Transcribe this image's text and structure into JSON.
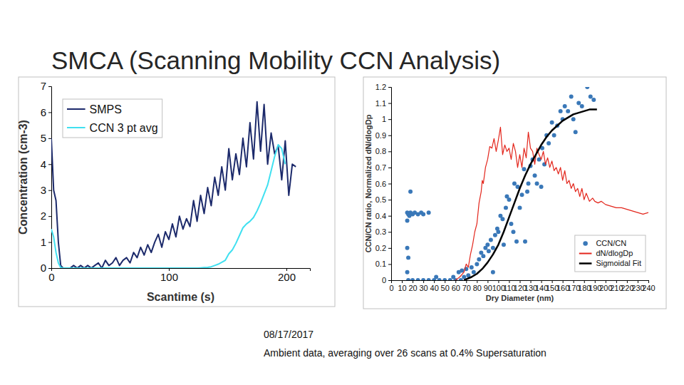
{
  "slide": {
    "title": "SMCA (Scanning Mobility CCN Analysis)",
    "notes": [
      "08/17/2017",
      "Ambient data, averaging over 26 scans at 0.4% Supersaturation"
    ]
  },
  "chart_data": [
    {
      "type": "line",
      "xlabel": "Scantime (s)",
      "ylabel": "Concentration (cm-3)",
      "x": [
        0,
        2,
        4,
        6,
        8,
        10,
        13,
        16,
        19,
        22,
        25,
        28,
        31,
        34,
        37,
        40,
        43,
        46,
        49,
        52,
        55,
        58,
        61,
        64,
        67,
        70,
        73,
        76,
        79,
        82,
        85,
        88,
        91,
        94,
        97,
        100,
        103,
        106,
        109,
        112,
        115,
        118,
        121,
        124,
        127,
        130,
        133,
        136,
        139,
        142,
        145,
        148,
        151,
        154,
        157,
        160,
        163,
        166,
        169,
        172,
        175,
        178,
        181,
        184,
        187,
        190,
        193,
        196,
        199,
        202,
        205,
        208
      ],
      "series": [
        {
          "name": "SMPS",
          "color": "#1c2a6b",
          "line_style": "solid",
          "values": [
            5.0,
            3.0,
            2.6,
            1.0,
            0.1,
            0,
            0,
            0,
            0.1,
            0,
            0.1,
            0,
            0.1,
            0,
            0.1,
            0.2,
            0,
            0.3,
            0.1,
            0.2,
            0.4,
            0.1,
            0.3,
            0.4,
            0.2,
            0.6,
            0.4,
            0.8,
            0.5,
            0.9,
            0.6,
            1.0,
            1.3,
            0.8,
            1.4,
            1.1,
            1.7,
            1.2,
            2.0,
            1.5,
            1.9,
            1.6,
            2.6,
            1.8,
            2.8,
            2.1,
            3.1,
            2.4,
            3.5,
            2.8,
            3.9,
            3.0,
            4.6,
            3.4,
            4.4,
            3.6,
            5.0,
            3.9,
            5.6,
            4.2,
            6.4,
            4.5,
            6.3,
            4.0,
            5.2,
            4.4,
            4.7,
            3.4,
            4.9,
            2.8,
            4.0,
            3.9
          ]
        },
        {
          "name": "CCN 3 pt avg",
          "color": "#40e0f0",
          "line_style": "solid",
          "values": [
            1.5,
            1.2,
            0.6,
            0.2,
            0.02,
            0,
            0,
            0,
            0,
            0,
            0,
            0,
            0,
            0,
            0,
            0,
            0,
            0,
            0,
            0,
            0,
            0,
            0,
            0,
            0,
            0,
            0,
            0,
            0,
            0,
            0,
            0,
            0,
            0,
            0,
            0,
            0,
            0,
            0,
            0,
            0,
            0,
            0,
            0,
            0.01,
            0.02,
            0.03,
            0.05,
            0.1,
            0.15,
            0.22,
            0.3,
            0.55,
            0.7,
            0.95,
            1.25,
            1.55,
            1.7,
            1.8,
            1.95,
            2.2,
            2.5,
            2.85,
            3.2,
            3.75,
            4.3,
            4.75,
            4.6,
            4.0,
            null,
            null,
            null
          ]
        }
      ],
      "xlim": [
        0,
        220
      ],
      "xticks": [
        0,
        100,
        200
      ],
      "ylim": [
        0,
        7
      ],
      "yticks": [
        0,
        1,
        2,
        3,
        4,
        5,
        6,
        7
      ],
      "grid": false,
      "legend": "upper left"
    },
    {
      "type": "scatter",
      "xlabel": "Dry Diameter (nm)",
      "ylabel": "CCN/CN ratio, Normalized dN/dlogDp",
      "series": [
        {
          "name": "CCN/CN",
          "color": "#3a78b8",
          "marker": "circle",
          "x": [
            15,
            16,
            17,
            18,
            20,
            22,
            25,
            28,
            30,
            35,
            18,
            15,
            15,
            16,
            15,
            16,
            20,
            25,
            30,
            35,
            40,
            45,
            50,
            55,
            60,
            65,
            42,
            58,
            63,
            66,
            68,
            70,
            72,
            75,
            77,
            80,
            82,
            84,
            86,
            88,
            90,
            91,
            93,
            95,
            95,
            97,
            99,
            100,
            102,
            104,
            105,
            107,
            108,
            110,
            112,
            114,
            115,
            117,
            118,
            120,
            122,
            124,
            125,
            127,
            128,
            130,
            132,
            134,
            136,
            138,
            140,
            141,
            143,
            145,
            147,
            150,
            152,
            155,
            158,
            160,
            162,
            165,
            168,
            170,
            172,
            175,
            178,
            183,
            186,
            189
          ],
          "values": [
            0.42,
            0.41,
            0.4,
            0.42,
            0.41,
            0.42,
            0.41,
            0.42,
            0.41,
            0.42,
            0.55,
            0.37,
            0.2,
            0.14,
            0.05,
            0,
            0,
            0,
            0,
            0,
            0,
            0,
            0,
            0,
            0,
            0,
            0.02,
            0.02,
            0.05,
            0.06,
            0.02,
            0.07,
            0.03,
            0.08,
            0.05,
            0.1,
            0.13,
            0.17,
            0.15,
            0.2,
            0.22,
            0.18,
            0.25,
            0.2,
            0.05,
            0.28,
            0.32,
            0.3,
            0.4,
            0.38,
            0.22,
            0.45,
            0.52,
            0.5,
            0.35,
            0.3,
            0.6,
            0.24,
            0.58,
            0.45,
            0.53,
            0.69,
            0.24,
            0.55,
            0.6,
            0.71,
            0.75,
            0.65,
            0.6,
            0.75,
            0.58,
            0.82,
            0.72,
            0.9,
            0.85,
            0.98,
            0.9,
            0.96,
            1.05,
            1.0,
            1.08,
            1.05,
            1.14,
            1.0,
            0.92,
            1.1,
            1.08,
            1.2,
            1.14,
            1.12
          ]
        },
        {
          "name": "dN/dlogDp",
          "color": "#e3261c",
          "type": "line",
          "line_style": "solid",
          "x": [
            60,
            64,
            68,
            70,
            72,
            74,
            76,
            78,
            80,
            82,
            84,
            85,
            86,
            88,
            90,
            92,
            94,
            96,
            98,
            100,
            102,
            104,
            106,
            108,
            110,
            112,
            114,
            116,
            118,
            120,
            122,
            124,
            126,
            128,
            130,
            132,
            134,
            136,
            138,
            140,
            142,
            144,
            146,
            148,
            150,
            152,
            154,
            156,
            158,
            160,
            162,
            164,
            166,
            168,
            170,
            172,
            174,
            176,
            178,
            180,
            182,
            185,
            188,
            190,
            193,
            196,
            200,
            205,
            210,
            215,
            220,
            225,
            230,
            235,
            240
          ],
          "values": [
            0,
            0.02,
            0.05,
            0.1,
            0.08,
            0.16,
            0.22,
            0.3,
            0.35,
            0.48,
            0.55,
            0.62,
            0.6,
            0.7,
            0.75,
            0.83,
            0.82,
            0.88,
            0.8,
            0.87,
            0.95,
            0.78,
            0.84,
            0.8,
            0.82,
            0.75,
            0.85,
            0.8,
            0.7,
            0.78,
            0.7,
            0.82,
            0.76,
            0.92,
            0.82,
            0.8,
            0.72,
            0.82,
            0.78,
            0.75,
            0.8,
            0.72,
            0.76,
            0.7,
            0.74,
            0.68,
            0.7,
            0.66,
            0.7,
            0.62,
            0.68,
            0.6,
            0.62,
            0.57,
            0.6,
            0.55,
            0.57,
            0.52,
            0.57,
            0.5,
            0.54,
            0.49,
            0.51,
            0.49,
            0.48,
            0.49,
            0.47,
            0.46,
            0.45,
            0.45,
            0.44,
            0.43,
            0.42,
            0.41,
            0.42
          ]
        },
        {
          "name": "Sigmoidal Fit",
          "color": "#000000",
          "type": "line",
          "line_style": "solid",
          "x": [
            68,
            75,
            80,
            85,
            90,
            95,
            100,
            105,
            110,
            115,
            120,
            125,
            130,
            135,
            140,
            145,
            150,
            155,
            160,
            165,
            170,
            175,
            180,
            185,
            192
          ],
          "values": [
            0,
            0.02,
            0.04,
            0.07,
            0.11,
            0.16,
            0.22,
            0.3,
            0.39,
            0.48,
            0.57,
            0.65,
            0.72,
            0.78,
            0.84,
            0.89,
            0.93,
            0.96,
            0.99,
            1.01,
            1.03,
            1.04,
            1.05,
            1.06,
            1.06
          ]
        }
      ],
      "xlim": [
        0,
        240
      ],
      "xticks": [
        0,
        10,
        20,
        30,
        40,
        50,
        60,
        70,
        80,
        90,
        100,
        110,
        120,
        130,
        140,
        150,
        160,
        170,
        180,
        190,
        200,
        210,
        220,
        230,
        240
      ],
      "ylim": [
        0,
        1.2
      ],
      "yticks": [
        0,
        0.1,
        0.2,
        0.3,
        0.4,
        0.5,
        0.6,
        0.7,
        0.8,
        0.9,
        1,
        1.1,
        1.2
      ],
      "grid": false,
      "legend": "lower right"
    }
  ]
}
